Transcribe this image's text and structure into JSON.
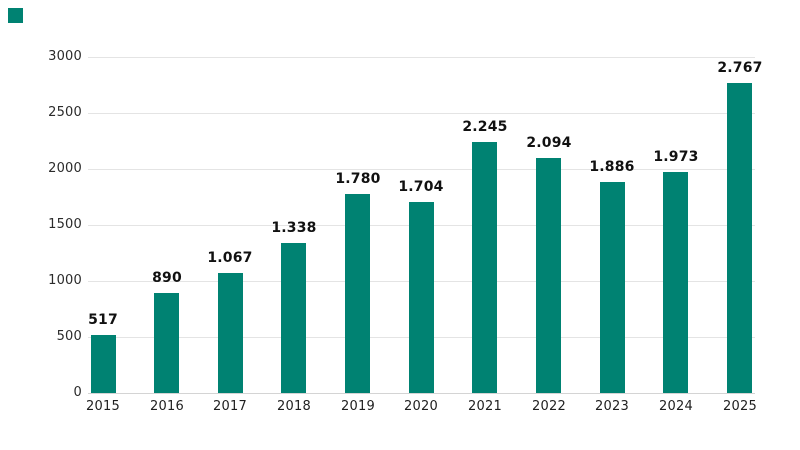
{
  "chart": {
    "background_color": "#ffffff",
    "bar_color": "#008272",
    "logo_color": "#008272",
    "grid_color": "#e4e4e4",
    "axis_line_color": "#d4d4d4",
    "value_label_color": "#111111",
    "tick_label_color": "#2b2b2b"
  },
  "chart_data": {
    "type": "bar",
    "title": "",
    "xlabel": "",
    "ylabel": "",
    "categories": [
      "2015",
      "2016",
      "2017",
      "2018",
      "2019",
      "2020",
      "2021",
      "2022",
      "2023",
      "2024",
      "2025"
    ],
    "values": [
      517,
      890,
      1067,
      1338,
      1780,
      1704,
      2245,
      2094,
      1886,
      1973,
      2767
    ],
    "value_labels": [
      "517",
      "890",
      "1.067",
      "1.338",
      "1.780",
      "1.704",
      "2.245",
      "2.094",
      "1.886",
      "1.973",
      "2.767"
    ],
    "ylim": [
      0,
      3000
    ],
    "yticks": [
      0,
      500,
      1000,
      1500,
      2000,
      2500,
      3000
    ],
    "ytick_labels": [
      "0",
      "500",
      "1000",
      "1500",
      "2000",
      "2500",
      "3000"
    ],
    "grid": true,
    "legend": false,
    "series_color": "#008272"
  }
}
